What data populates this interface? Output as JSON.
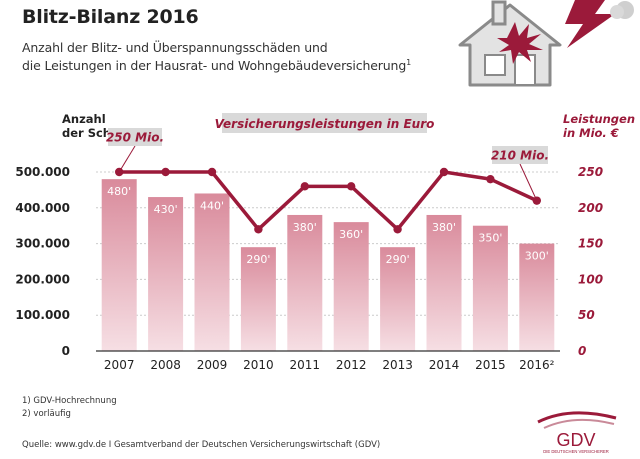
{
  "header": {
    "title": "Blitz-Bilanz 2016",
    "subtitle_line1": "Anzahl der Blitz- und Überspannungsschäden und",
    "subtitle_line2": "die Leistungen in der Hausrat- und Wohngebäudeversicherung",
    "subtitle_sup": "1"
  },
  "axes": {
    "left_label_line1": "Anzahl",
    "left_label_line2": "der Schäden",
    "right_label_line1": "Leistungen",
    "right_label_line2": "in Mio. €"
  },
  "footnotes": {
    "note1": "1) GDV-Hochrechnung",
    "note2": "2) vorläufig",
    "source": "Quelle: www.gdv.de I Gesamtverband der Deutschen Versicherungswirtschaft (GDV)"
  },
  "logo": {
    "text": "GDV",
    "tagline": "DIE DEUTSCHEN VERSICHERER"
  },
  "colors": {
    "accent": "#9b1a3a",
    "bar_top": "#d98a9b",
    "bar_bottom": "#f6dfe4",
    "banner": "#d9d9d9"
  },
  "chart_data": {
    "type": "bar",
    "categories": [
      "2007",
      "2008",
      "2009",
      "2010",
      "2011",
      "2012",
      "2013",
      "2014",
      "2015",
      "2016²"
    ],
    "series": [
      {
        "name": "",
        "type": "bar",
        "values": [
          480000,
          430000,
          440000,
          290000,
          380000,
          360000,
          290000,
          380000,
          350000,
          300000
        ],
        "labels": [
          "480'",
          "430'",
          "440'",
          "290'",
          "380'",
          "360'",
          "290'",
          "380'",
          "350'",
          "300'"
        ]
      },
      {
        "name": "Versicherungsleistungen in Euro",
        "type": "line",
        "axis": "right",
        "values": [
          250,
          250,
          250,
          170,
          230,
          230,
          170,
          250,
          240,
          210
        ]
      }
    ],
    "left_axis": {
      "ylim": [
        0,
        500000
      ],
      "ticks": [
        "0",
        "100.000",
        "200.000",
        "300.000",
        "400.000",
        "500.000"
      ]
    },
    "right_axis": {
      "ylim": [
        0,
        250
      ],
      "ticks": [
        "0",
        "50",
        "100",
        "150",
        "200",
        "250"
      ]
    },
    "callouts": [
      "250 Mio.",
      "210 Mio."
    ],
    "legend_placement": "top-center",
    "grid": true
  }
}
